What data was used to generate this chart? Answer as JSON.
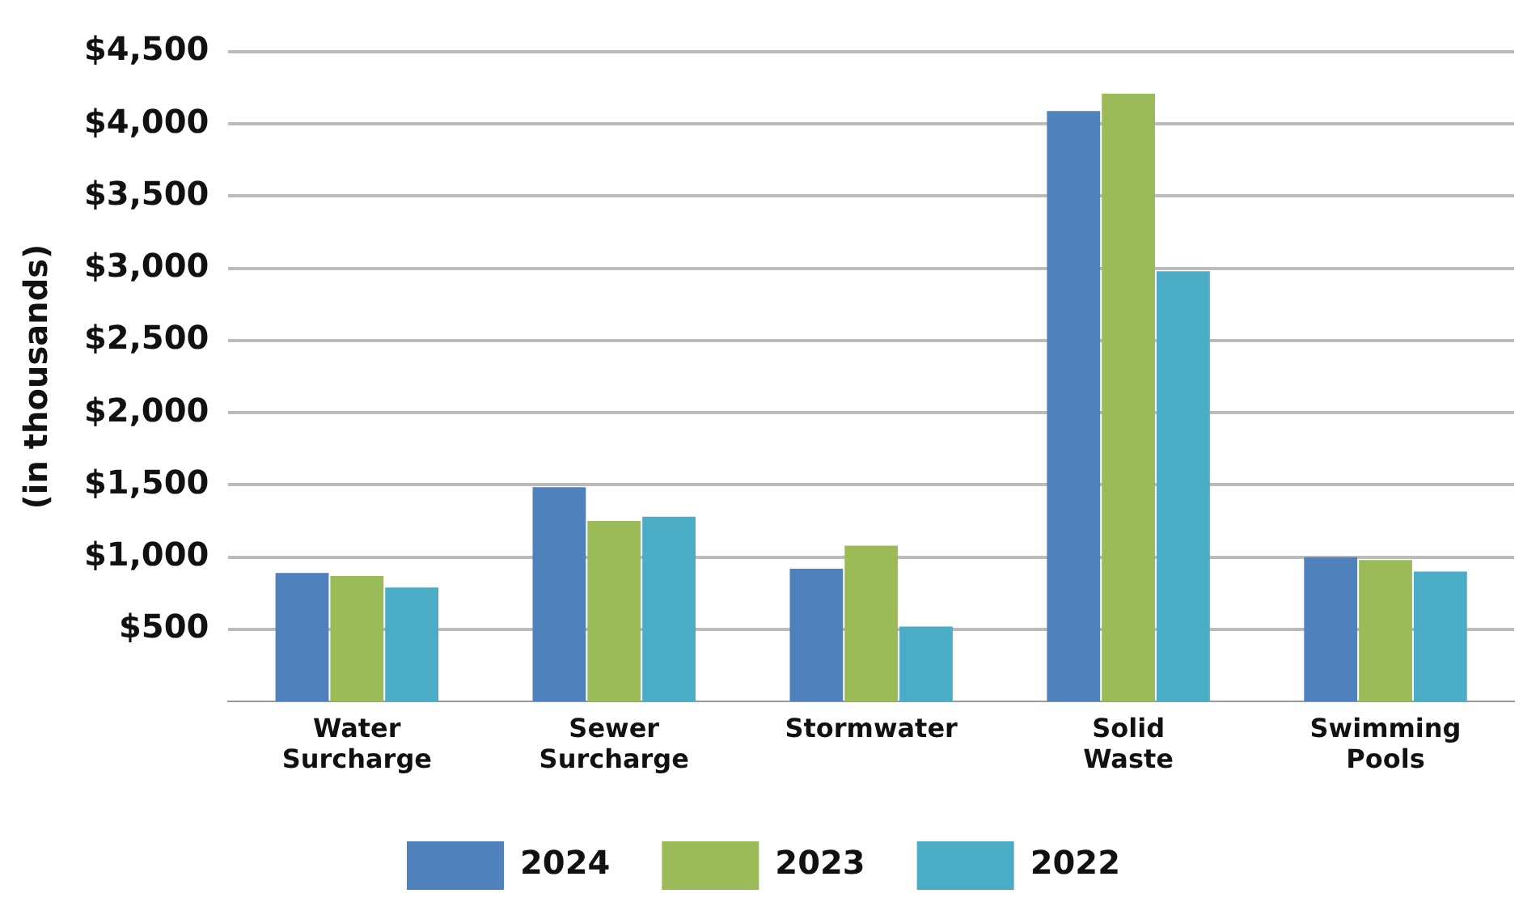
{
  "chart_data": {
    "type": "bar",
    "ylabel": "(in thousands)",
    "categories": [
      "Water\nSurcharge",
      "Sewer\nSurcharge",
      "Stormwater",
      "Solid\nWaste",
      "Swimming\nPools"
    ],
    "series": [
      {
        "name": "2024",
        "color": "#4f81bd",
        "values": [
          890,
          1485,
          920,
          4090,
          1000
        ]
      },
      {
        "name": "2023",
        "color": "#9bbb59",
        "values": [
          870,
          1250,
          1080,
          4210,
          980
        ]
      },
      {
        "name": "2022",
        "color": "#4bacc6",
        "values": [
          790,
          1280,
          520,
          2980,
          900
        ]
      }
    ],
    "ylim": [
      0,
      4500
    ],
    "yticks": [
      {
        "value": 500,
        "label": "$500"
      },
      {
        "value": 1000,
        "label": "$1,000"
      },
      {
        "value": 1500,
        "label": "$1,500"
      },
      {
        "value": 2000,
        "label": "$2,000"
      },
      {
        "value": 2500,
        "label": "$2,500"
      },
      {
        "value": 3000,
        "label": "$3,000"
      },
      {
        "value": 3500,
        "label": "$3,500"
      },
      {
        "value": 4000,
        "label": "$4,000"
      },
      {
        "value": 4500,
        "label": "$4,500"
      }
    ],
    "grid": "y",
    "legend": "bottom"
  }
}
